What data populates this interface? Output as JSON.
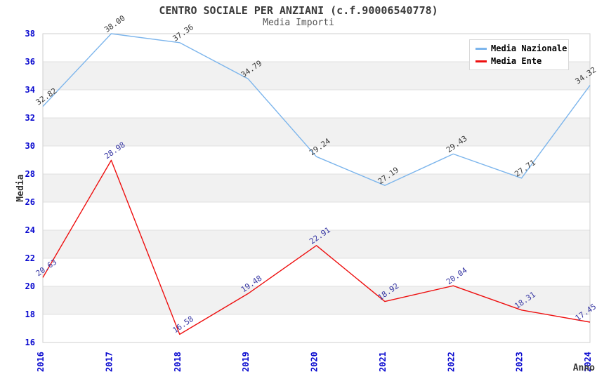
{
  "header": {
    "title": "CENTRO SOCIALE PER ANZIANI (c.f.90006540778)",
    "subtitle": "Media Importi"
  },
  "chart_data": {
    "type": "line",
    "x": [
      "2016",
      "2017",
      "2018",
      "2019",
      "2020",
      "2021",
      "2022",
      "2023",
      "2024"
    ],
    "xlabel": "Anno",
    "ylabel": "Media",
    "ylim": [
      16,
      38
    ],
    "ytick_step": 2,
    "grid": "horizontal-only",
    "banding": "alternating gray bands every 2 units",
    "legend_position": "top-right",
    "series": [
      {
        "name": "Media Nazionale",
        "color": "#7cb5ec",
        "label_color": "#3c3c3c",
        "values": [
          32.82,
          38.0,
          37.36,
          34.79,
          29.24,
          27.19,
          29.43,
          27.71,
          34.32
        ]
      },
      {
        "name": "Media Ente",
        "color": "#ee0f0f",
        "label_color": "#3636a3",
        "values": [
          20.63,
          28.98,
          16.58,
          19.48,
          22.91,
          18.92,
          20.04,
          18.31,
          17.45
        ]
      }
    ],
    "colors": {
      "tick_label": "#0909cf",
      "axis_label": "#333333",
      "band": "#f1f1f1",
      "grid": "#e0e0e0",
      "border": "#cfcfcf",
      "background": "#ffffff",
      "title": "#3a3a3a",
      "subtitle": "#555555"
    }
  }
}
